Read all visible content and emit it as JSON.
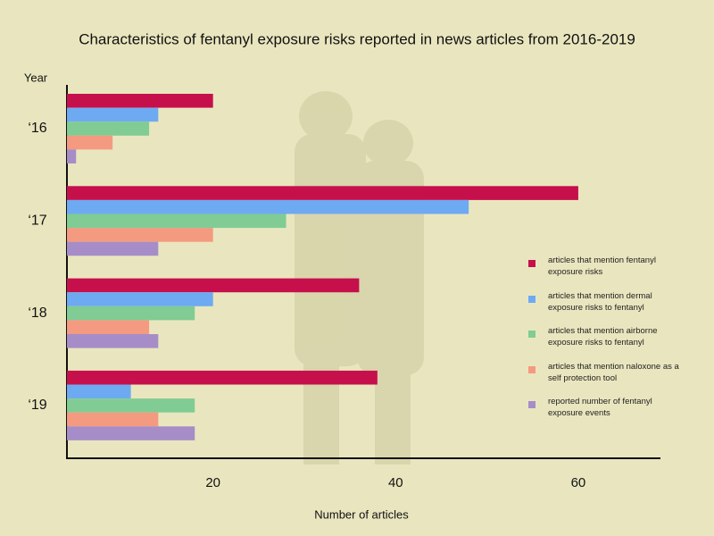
{
  "chart_data": {
    "type": "bar",
    "orientation": "horizontal",
    "title": "Characteristics of fentanyl exposure risks reported in news articles from 2016-2019",
    "y_label": "Year",
    "x_label": "Number of articles",
    "categories": [
      "‘16",
      "‘17",
      "‘18",
      "‘19"
    ],
    "series": [
      {
        "name": "articles that mention fentanyl exposure risks",
        "color": "#c6104c",
        "values": [
          20,
          60,
          36,
          38
        ]
      },
      {
        "name": "articles that mention dermal exposure risks to fentanyl",
        "color": "#6eaaf2",
        "values": [
          14,
          48,
          20,
          11
        ]
      },
      {
        "name": "articles that mention airborne exposure risks to fentanyl",
        "color": "#80cc94",
        "values": [
          13,
          28,
          18,
          18
        ]
      },
      {
        "name": "articles that mention naloxone as a self protection tool",
        "color": "#f49a80",
        "values": [
          9,
          20,
          13,
          14
        ]
      },
      {
        "name": "reported number of fentanyl exposure events",
        "color": "#a68dc8",
        "values": [
          5,
          14,
          14,
          18
        ]
      }
    ],
    "xlim": [
      4,
      69
    ],
    "xticks": [
      20,
      40,
      60
    ],
    "grid": false,
    "legend": "right"
  }
}
